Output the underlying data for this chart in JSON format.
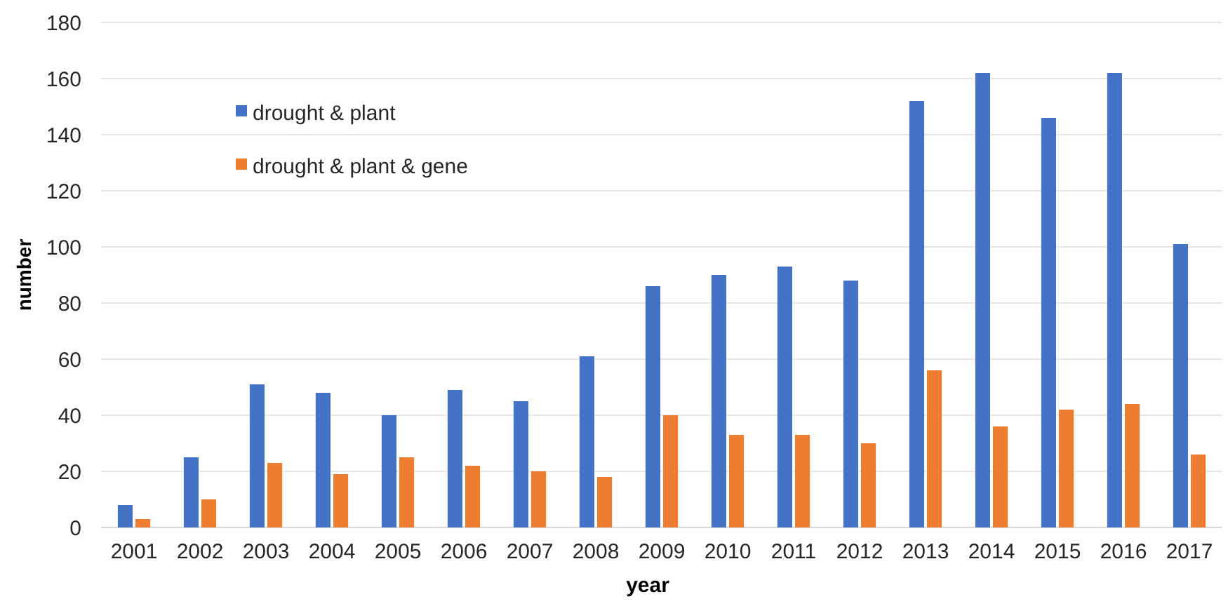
{
  "chart_data": {
    "type": "bar",
    "xlabel": "year",
    "ylabel": "number",
    "categories": [
      "2001",
      "2002",
      "2003",
      "2004",
      "2005",
      "2006",
      "2007",
      "2008",
      "2009",
      "2010",
      "2011",
      "2012",
      "2013",
      "2014",
      "2015",
      "2016",
      "2017"
    ],
    "series": [
      {
        "name": "drought & plant",
        "color": "#4472c4",
        "values": [
          8,
          25,
          51,
          48,
          40,
          49,
          45,
          61,
          86,
          90,
          93,
          88,
          152,
          162,
          146,
          162,
          101
        ]
      },
      {
        "name": "drought & plant & gene",
        "color": "#ed7d31",
        "values": [
          3,
          10,
          23,
          19,
          25,
          22,
          20,
          18,
          40,
          33,
          33,
          30,
          56,
          36,
          42,
          44,
          26
        ]
      }
    ],
    "ylim": [
      0,
      180
    ],
    "yticks": [
      0,
      20,
      40,
      60,
      80,
      100,
      120,
      140,
      160,
      180
    ],
    "grid": "y",
    "legend": "top left"
  }
}
